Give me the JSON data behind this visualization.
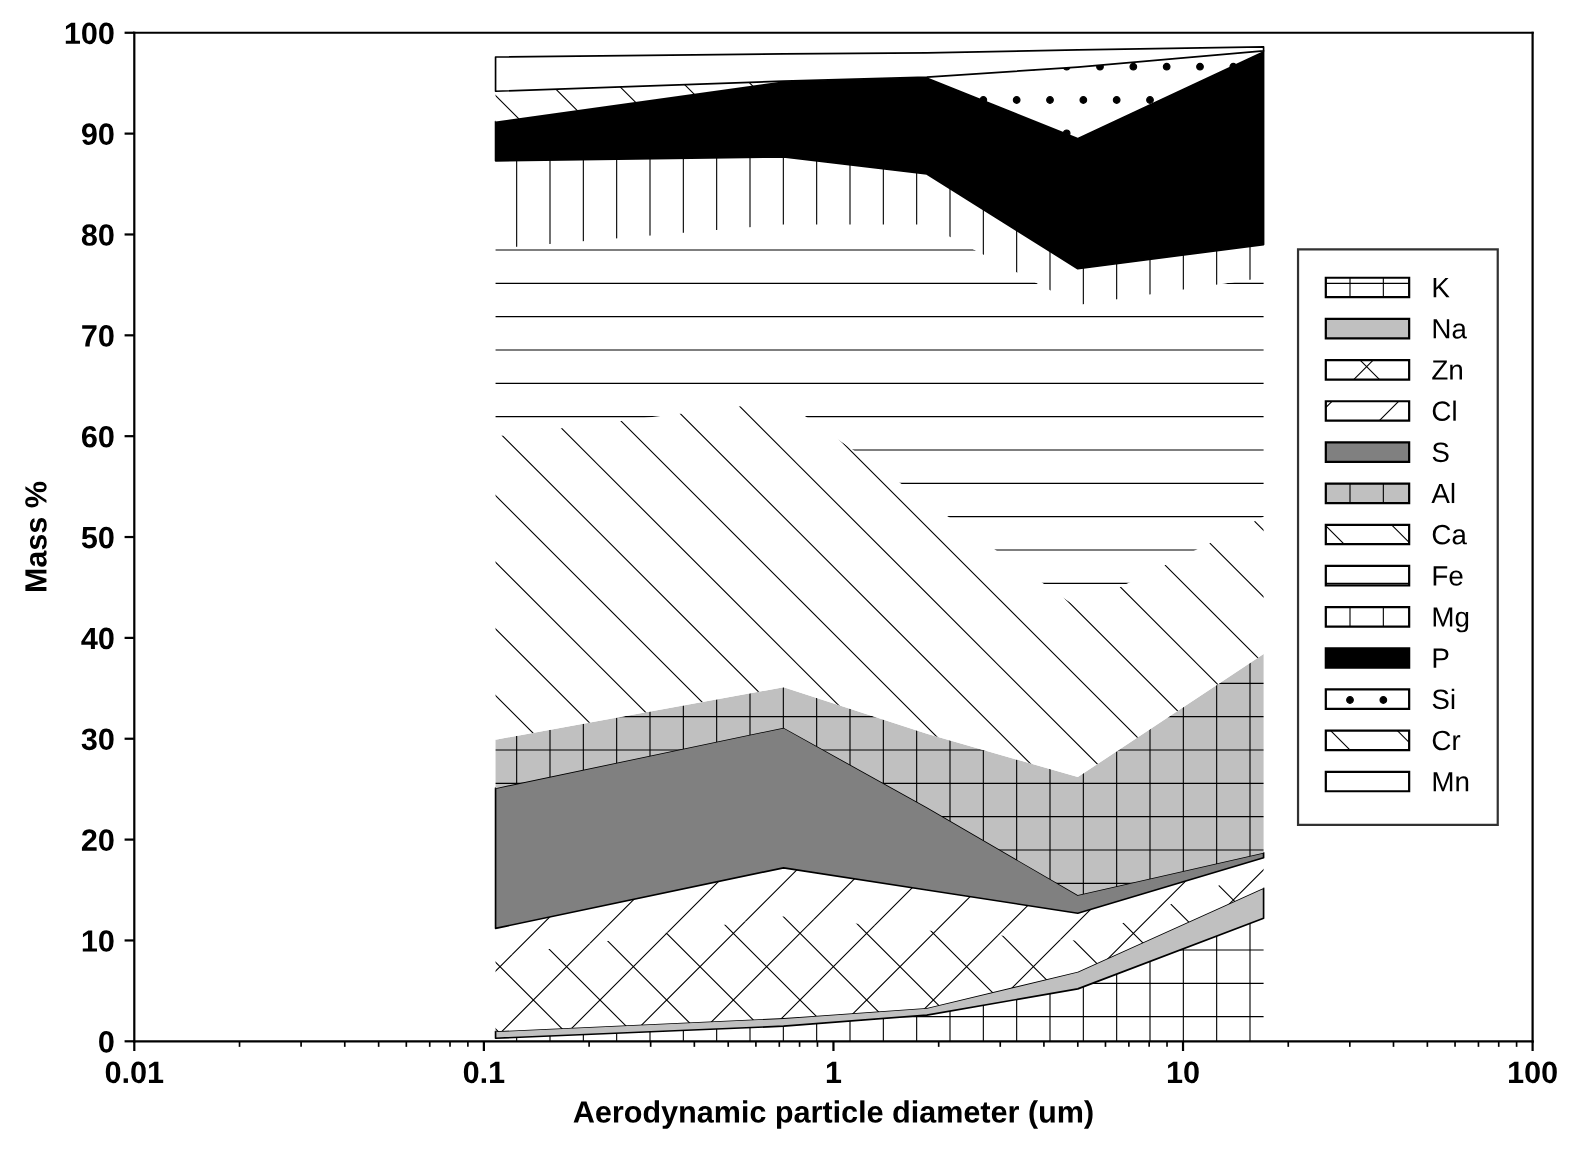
{
  "chart_data": {
    "type": "area",
    "stacked": true,
    "xlabel": "Aerodynamic particle diameter (um)",
    "ylabel": "Mass %",
    "x": [
      0.108,
      0.72,
      1.85,
      5.0,
      17
    ],
    "log": "x",
    "xlim": [
      0.01,
      100
    ],
    "xticks": [
      {
        "value": 0.01,
        "label": "0.01"
      },
      {
        "value": 0.1,
        "label": "0.1"
      },
      1,
      10,
      100
    ],
    "ylim": [
      0,
      100
    ],
    "yticks": [
      0,
      10,
      20,
      30,
      40,
      50,
      60,
      70,
      80,
      90,
      100
    ],
    "grid": false,
    "legend": "right",
    "series": [
      {
        "name": "K",
        "color": "#ffffff",
        "values": [
          0.3,
          1.5,
          2.6,
          5.2,
          12.2
        ]
      },
      {
        "name": "Na",
        "color": "#c0c0c0",
        "values": [
          0.7,
          0.8,
          0.7,
          1.7,
          3.0
        ]
      },
      {
        "name": "Zn",
        "color": "#ffffff",
        "values": [
          7.4,
          10.1,
          7.7,
          3.1,
          2.0
        ]
      },
      {
        "name": "Cl",
        "color": "#ffffff",
        "values": [
          2.8,
          4.8,
          4.0,
          2.7,
          1.0
        ]
      },
      {
        "name": "S",
        "color": "#808080",
        "values": [
          13.9,
          13.9,
          8.2,
          1.8,
          0.5
        ]
      },
      {
        "name": "Al",
        "color": "#c0c0c0",
        "values": [
          4.8,
          4.0,
          7.3,
          11.7,
          19.7
        ]
      },
      {
        "name": "Ca",
        "color": "#ffffff",
        "values": [
          30.1,
          28.4,
          23.0,
          16.8,
          13.6
        ]
      },
      {
        "name": "Fe",
        "color": "#ffffff",
        "values": [
          18.6,
          17.5,
          27.5,
          30.0,
          23.7
        ]
      },
      {
        "name": "Mg",
        "color": "#ffffff",
        "values": [
          8.7,
          6.7,
          5.0,
          3.6,
          3.3
        ]
      },
      {
        "name": "P",
        "color": "#000000",
        "values": [
          3.9,
          7.5,
          9.6,
          13.0,
          19.2
        ]
      },
      {
        "name": "Si",
        "color": "#ffffff",
        "values": [
          null,
          null,
          0,
          7.0,
          0
        ]
      },
      {
        "name": "Cr",
        "color": "#ffffff",
        "values": [
          3.0,
          0,
          null,
          null,
          null
        ]
      },
      {
        "name": "Mn",
        "color": "#ffffff",
        "values": [
          3.4,
          2.7,
          2.4,
          1.7,
          0.4
        ]
      }
    ]
  }
}
